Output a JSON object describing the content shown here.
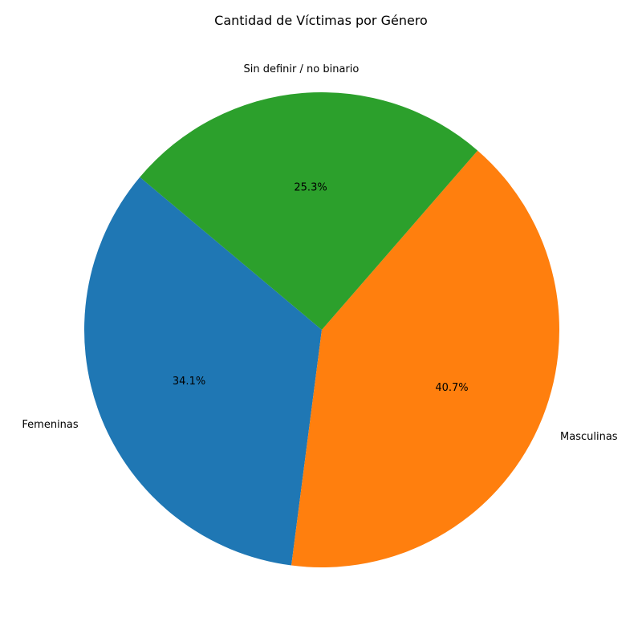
{
  "chart_data": {
    "type": "pie",
    "title": "Cantidad de Víctimas por Género",
    "slices": [
      {
        "label": "Femeninas",
        "value": 34.1,
        "pct_label": "34.1%",
        "color": "#1f77b4"
      },
      {
        "label": "Masculinas",
        "value": 40.7,
        "pct_label": "40.7%",
        "color": "#ff7f0e"
      },
      {
        "label": "Sin definir / no binario",
        "value": 25.3,
        "pct_label": "25.3%",
        "color": "#2ca02c"
      }
    ],
    "start_angle_deg": 140,
    "direction": "counterclockwise",
    "legend": "none"
  }
}
